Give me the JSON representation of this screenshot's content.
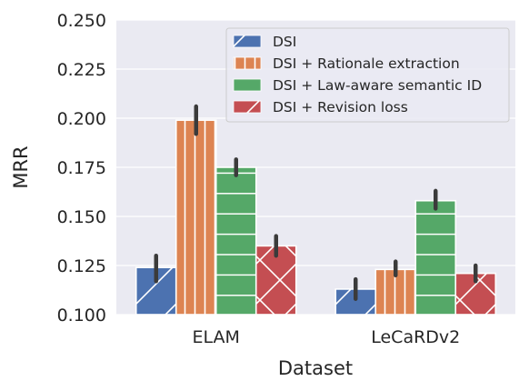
{
  "chart_data": {
    "type": "bar",
    "xlabel": "Dataset",
    "ylabel": "MRR",
    "ylim": [
      0.1,
      0.25
    ],
    "yticks": [
      "0.100",
      "0.125",
      "0.150",
      "0.175",
      "0.200",
      "0.225",
      "0.250"
    ],
    "ytick_values": [
      0.1,
      0.125,
      0.15,
      0.175,
      0.2,
      0.225,
      0.25
    ],
    "categories": [
      "ELAM",
      "LeCaRDv2"
    ],
    "grid": true,
    "legend_position": "top-right",
    "series": [
      {
        "name": "DSI",
        "color": "#4c72b0",
        "hatch": "diagonal",
        "values": [
          0.124,
          0.113
        ],
        "err_low": [
          0.117,
          0.108
        ],
        "err_high": [
          0.13,
          0.118
        ]
      },
      {
        "name": "DSI + Rationale extraction",
        "color": "#dd8452",
        "hatch": "vertical",
        "values": [
          0.199,
          0.123
        ],
        "err_low": [
          0.192,
          0.12
        ],
        "err_high": [
          0.206,
          0.127
        ]
      },
      {
        "name": "DSI + Law-aware semantic ID",
        "color": "#55a868",
        "hatch": "horizontal",
        "values": [
          0.175,
          0.158
        ],
        "err_low": [
          0.171,
          0.154
        ],
        "err_high": [
          0.179,
          0.163
        ]
      },
      {
        "name": "DSI + Revision loss",
        "color": "#c44e52",
        "hatch": "cross",
        "values": [
          0.135,
          0.121
        ],
        "err_low": [
          0.13,
          0.117
        ],
        "err_high": [
          0.14,
          0.125
        ]
      }
    ]
  }
}
